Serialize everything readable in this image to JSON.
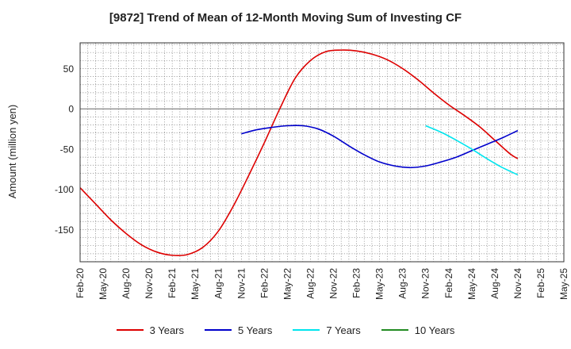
{
  "chart_data": {
    "type": "line",
    "title": "[9872]  Trend of Mean of 12-Month Moving Sum of Investing CF",
    "xlabel": "",
    "ylabel": "Amount (million yen)",
    "ylim": [
      -190,
      82
    ],
    "yticks": [
      50,
      0,
      -50,
      -100,
      -150
    ],
    "xticks": [
      "Feb-20",
      "May-20",
      "Aug-20",
      "Nov-20",
      "Feb-21",
      "May-21",
      "Aug-21",
      "Nov-21",
      "Feb-22",
      "May-22",
      "Aug-22",
      "Nov-22",
      "Feb-23",
      "May-23",
      "Aug-23",
      "Nov-23",
      "Feb-24",
      "May-24",
      "Aug-24",
      "Nov-24",
      "Feb-25",
      "May-25"
    ],
    "grid": true,
    "legend_position": "bottom",
    "series": [
      {
        "name": "3 Years",
        "color": "#dd0000",
        "x": [
          "Feb-20",
          "Apr-20",
          "Jun-20",
          "Aug-20",
          "Oct-20",
          "Dec-20",
          "Feb-21",
          "Apr-21",
          "Jun-21",
          "Aug-21",
          "Oct-21",
          "Dec-21",
          "Feb-22",
          "Apr-22",
          "Jun-22",
          "Aug-22",
          "Oct-22",
          "Dec-22",
          "Feb-23",
          "Apr-23",
          "Jun-23",
          "Aug-23",
          "Oct-23",
          "Dec-23",
          "Feb-24",
          "Apr-24",
          "Jun-24",
          "Aug-24",
          "Oct-24",
          "Nov-24"
        ],
        "values": [
          -98,
          -118,
          -138,
          -155,
          -169,
          -178,
          -182,
          -181,
          -172,
          -152,
          -120,
          -82,
          -42,
          0,
          38,
          60,
          71,
          73,
          72,
          68,
          61,
          50,
          36,
          20,
          5,
          -8,
          -22,
          -39,
          -56,
          -62
        ]
      },
      {
        "name": "5 Years",
        "color": "#0000cc",
        "x": [
          "Nov-21",
          "Jan-22",
          "Mar-22",
          "May-22",
          "Jul-22",
          "Sep-22",
          "Nov-22",
          "Jan-23",
          "Mar-23",
          "May-23",
          "Jul-23",
          "Sep-23",
          "Nov-23",
          "Jan-24",
          "Mar-24",
          "May-24",
          "Jul-24",
          "Sep-24",
          "Nov-24"
        ],
        "values": [
          -31,
          -26,
          -23,
          -21,
          -21,
          -25,
          -34,
          -46,
          -57,
          -66,
          -71,
          -73,
          -71,
          -66,
          -60,
          -52,
          -44,
          -36,
          -27
        ]
      },
      {
        "name": "7 Years",
        "color": "#00e5ee",
        "x": [
          "Nov-23",
          "Jan-24",
          "Mar-24",
          "May-24",
          "Jul-24",
          "Sep-24",
          "Nov-24"
        ],
        "values": [
          -21,
          -29,
          -39,
          -50,
          -62,
          -73,
          -82
        ]
      },
      {
        "name": "10 Years",
        "color": "#228b22",
        "x": [],
        "values": []
      }
    ]
  }
}
